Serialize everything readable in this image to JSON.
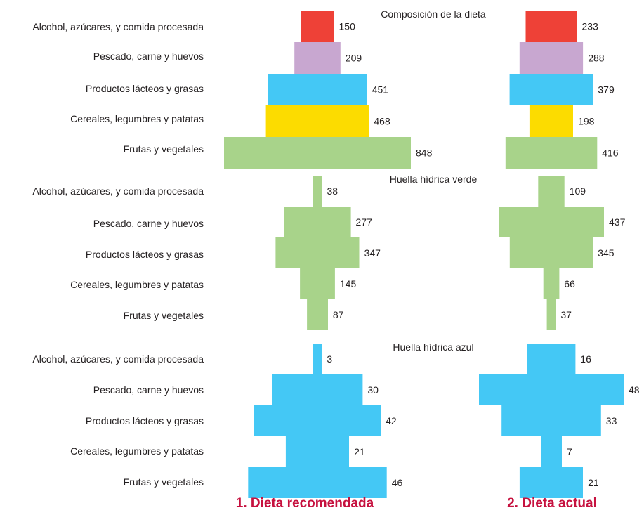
{
  "categories": [
    "Alcohol, azúcares, y comida procesada",
    "Pescado, carne y huevos",
    "Productos lácteos y grasas",
    "Cereales, legumbres y patatas",
    "Frutas y vegetales"
  ],
  "columns": [
    "1. Dieta recomendada",
    "2. Dieta actual"
  ],
  "colors": {
    "alcohol": "#ee4137",
    "meat": "#c8a7d0",
    "dairy": "#44c8f5",
    "cereals": "#fcdc00",
    "fruits": "#a8d38a",
    "green_footprint": "#a8d38a",
    "blue_footprint": "#44c8f5",
    "title_accent": "#c6113f"
  },
  "chart_data": [
    {
      "type": "bar",
      "title": "Composición de la dieta",
      "categories": [
        "Alcohol, azúcares, y comida procesada",
        "Pescado, carne y huevos",
        "Productos lácteos y grasas",
        "Cereales, legumbres y patatas",
        "Frutas y vegetales"
      ],
      "series": [
        {
          "name": "1. Dieta recomendada",
          "values": [
            150,
            209,
            451,
            468,
            848
          ]
        },
        {
          "name": "2. Dieta actual",
          "values": [
            233,
            288,
            379,
            198,
            416
          ]
        }
      ]
    },
    {
      "type": "bar",
      "title": "Huella hídrica verde",
      "categories": [
        "Alcohol, azúcares, y comida procesada",
        "Pescado, carne y huevos",
        "Productos lácteos y grasas",
        "Cereales, legumbres y patatas",
        "Frutas y vegetales"
      ],
      "series": [
        {
          "name": "1. Dieta recomendada",
          "values": [
            38,
            277,
            347,
            145,
            87
          ]
        },
        {
          "name": "2. Dieta actual",
          "values": [
            109,
            437,
            345,
            66,
            37
          ]
        }
      ]
    },
    {
      "type": "bar",
      "title": "Huella hídrica azul",
      "categories": [
        "Alcohol, azúcares, y comida procesada",
        "Pescado, carne y huevos",
        "Productos lácteos y grasas",
        "Cereales, legumbres y patatas",
        "Frutas y vegetales"
      ],
      "series": [
        {
          "name": "1. Dieta recomendada",
          "values": [
            3,
            30,
            42,
            21,
            46
          ]
        },
        {
          "name": "2. Dieta actual",
          "values": [
            16,
            48,
            33,
            7,
            21
          ]
        }
      ]
    }
  ]
}
